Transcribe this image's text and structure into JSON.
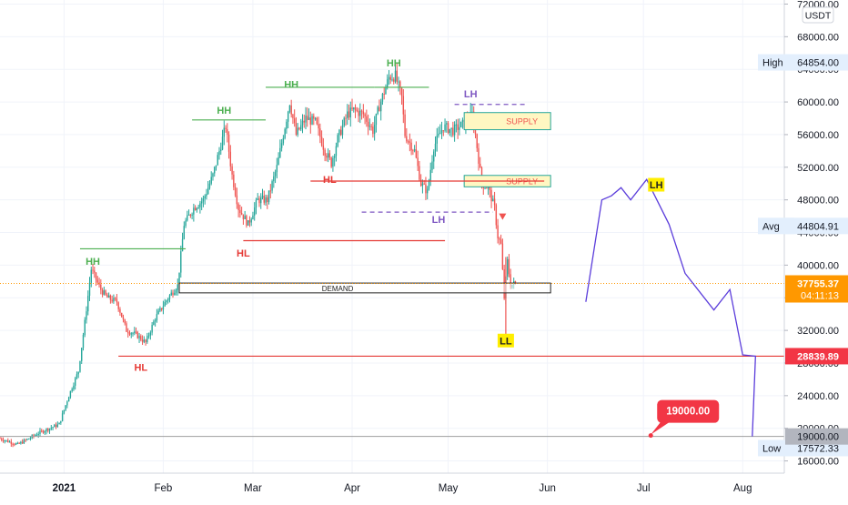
{
  "chart_data": {
    "type": "candlestick",
    "symbol_unit": "USDT",
    "currency_badge": "USDT",
    "y_axis": {
      "ticks": [
        16000,
        20000,
        24000,
        28000,
        32000,
        36000,
        40000,
        44000,
        48000,
        52000,
        56000,
        60000,
        64000,
        68000,
        72000
      ],
      "tick_labels": [
        "16000.00",
        "20000.00",
        "24000.00",
        "28000.00",
        "32000.00",
        "36000.00",
        "40000.00",
        "44000.00",
        "48000.00",
        "52000.00",
        "56000.00",
        "60000.00",
        "64000.00",
        "68000.00",
        "72000.00"
      ],
      "ylim": [
        14500,
        72500
      ]
    },
    "x_axis": {
      "labels": [
        {
          "label": "2021",
          "date": "2021-01-01",
          "bold": true
        },
        {
          "label": "Feb",
          "date": "2021-02-01"
        },
        {
          "label": "Mar",
          "date": "2021-03-01"
        },
        {
          "label": "Apr",
          "date": "2021-04-01"
        },
        {
          "label": "May",
          "date": "2021-05-01"
        },
        {
          "label": "Jun",
          "date": "2021-06-01"
        },
        {
          "label": "Jul",
          "date": "2021-07-01"
        },
        {
          "label": "Aug",
          "date": "2021-08-01"
        }
      ],
      "xlim": [
        "2020-12-12",
        "2021-08-14"
      ]
    },
    "price_markers": {
      "high": {
        "label": "High",
        "value_label": "64854.00",
        "value": 64854
      },
      "avg": {
        "label": "Avg",
        "value_label": "44804.91",
        "value": 44804.91
      },
      "low": {
        "label": "Low",
        "value_label": "17572.33",
        "value": 17572.33
      },
      "current": {
        "value_label": "37755.37",
        "value": 37755.37,
        "countdown": "04:11:13"
      },
      "level_28839": {
        "value_label": "28839.89",
        "value": 28839.89
      },
      "level_19000": {
        "value_label": "19000.00",
        "value": 19000
      }
    },
    "price_path": [
      [
        "2020-12-12",
        18800
      ],
      [
        "2020-12-18",
        18000
      ],
      [
        "2020-12-25",
        19500
      ],
      [
        "2020-12-31",
        20500
      ],
      [
        "2021-01-03",
        24000
      ],
      [
        "2021-01-06",
        27000
      ],
      [
        "2021-01-08",
        33000
      ],
      [
        "2021-01-10",
        39500
      ],
      [
        "2021-01-13",
        37000
      ],
      [
        "2021-01-15",
        36000
      ],
      [
        "2021-01-18",
        35500
      ],
      [
        "2021-01-21",
        32000
      ],
      [
        "2021-01-24",
        31500
      ],
      [
        "2021-01-27",
        30500
      ],
      [
        "2021-01-30",
        33500
      ],
      [
        "2021-02-03",
        36000
      ],
      [
        "2021-02-06",
        37500
      ],
      [
        "2021-02-08",
        45000
      ],
      [
        "2021-02-11",
        47000
      ],
      [
        "2021-02-14",
        48000
      ],
      [
        "2021-02-17",
        51000
      ],
      [
        "2021-02-19",
        54000
      ],
      [
        "2021-02-21",
        57000
      ],
      [
        "2021-02-23",
        51000
      ],
      [
        "2021-02-25",
        47000
      ],
      [
        "2021-02-28",
        45000
      ],
      [
        "2021-03-03",
        48000
      ],
      [
        "2021-03-06",
        48000
      ],
      [
        "2021-03-09",
        52000
      ],
      [
        "2021-03-11",
        56000
      ],
      [
        "2021-03-13",
        60000
      ],
      [
        "2021-03-15",
        56000
      ],
      [
        "2021-03-18",
        58000
      ],
      [
        "2021-03-21",
        57500
      ],
      [
        "2021-03-24",
        54000
      ],
      [
        "2021-03-26",
        52500
      ],
      [
        "2021-03-28",
        55500
      ],
      [
        "2021-03-31",
        58500
      ],
      [
        "2021-04-02",
        59000
      ],
      [
        "2021-04-05",
        58500
      ],
      [
        "2021-04-08",
        56500
      ],
      [
        "2021-04-10",
        59500
      ],
      [
        "2021-04-13",
        63000
      ],
      [
        "2021-04-15",
        63200
      ],
      [
        "2021-04-17",
        60500
      ],
      [
        "2021-04-18",
        56000
      ],
      [
        "2021-04-21",
        54000
      ],
      [
        "2021-04-23",
        50000
      ],
      [
        "2021-04-25",
        49000
      ],
      [
        "2021-04-27",
        54500
      ],
      [
        "2021-04-30",
        57000
      ],
      [
        "2021-05-03",
        56500
      ],
      [
        "2021-05-05",
        57000
      ],
      [
        "2021-05-07",
        57500
      ],
      [
        "2021-05-09",
        58500
      ],
      [
        "2021-05-10",
        56000
      ],
      [
        "2021-05-12",
        50000
      ],
      [
        "2021-05-14",
        49500
      ],
      [
        "2021-05-16",
        47000
      ],
      [
        "2021-05-17",
        43500
      ],
      [
        "2021-05-18",
        42500
      ],
      [
        "2021-05-19",
        36000
      ],
      [
        "2021-05-20",
        40500
      ],
      [
        "2021-05-21",
        37500
      ],
      [
        "2021-05-22",
        37755
      ]
    ],
    "projection_path": [
      [
        "2021-06-13",
        35500
      ],
      [
        "2021-06-18",
        48000
      ],
      [
        "2021-06-21",
        48500
      ],
      [
        "2021-06-24",
        49500
      ],
      [
        "2021-06-27",
        48000
      ],
      [
        "2021-07-02",
        50500
      ],
      [
        "2021-07-09",
        45000
      ],
      [
        "2021-07-14",
        39000
      ],
      [
        "2021-07-23",
        34500
      ],
      [
        "2021-07-28",
        37000
      ],
      [
        "2021-08-01",
        29000
      ],
      [
        "2021-08-05",
        28839.89
      ],
      [
        "2021-08-04",
        19000
      ]
    ],
    "structure_labels": [
      {
        "text": "HH",
        "date": "2021-01-10",
        "value": 40500,
        "style": "green"
      },
      {
        "text": "HH",
        "date": "2021-02-20",
        "value": 59000,
        "style": "green"
      },
      {
        "text": "HH",
        "date": "2021-03-13",
        "value": 62200,
        "style": "green"
      },
      {
        "text": "HH",
        "date": "2021-04-14",
        "value": 64800,
        "style": "green"
      },
      {
        "text": "HL",
        "date": "2021-01-25",
        "value": 27500,
        "style": "red"
      },
      {
        "text": "HL",
        "date": "2021-02-26",
        "value": 41500,
        "style": "red"
      },
      {
        "text": "HL",
        "date": "2021-03-25",
        "value": 50500,
        "style": "red"
      },
      {
        "text": "LH",
        "date": "2021-05-08",
        "value": 61000,
        "style": "purple"
      },
      {
        "text": "LH",
        "date": "2021-04-28",
        "value": 45600,
        "style": "purple"
      },
      {
        "text": "LH",
        "date": "2021-07-05",
        "value": 49800,
        "style": "badge"
      },
      {
        "text": "LL",
        "date": "2021-05-19",
        "value": 30700,
        "style": "badge"
      }
    ],
    "zones": [
      {
        "label": "SUPPLY",
        "from": "2021-05-06",
        "to": "2021-06-02",
        "low": 56600,
        "high": 58700
      },
      {
        "label": "SUPPLY",
        "from": "2021-05-06",
        "to": "2021-06-02",
        "low": 49600,
        "high": 51000
      },
      {
        "label": "DEMAND",
        "from": "2021-02-06",
        "to": "2021-06-02",
        "low": 36600,
        "high": 37800
      }
    ],
    "levels": [
      {
        "kind": "green",
        "from": "2021-01-06",
        "to": "2021-02-08",
        "value": 42000
      },
      {
        "kind": "green",
        "from": "2021-02-10",
        "to": "2021-03-05",
        "value": 57800
      },
      {
        "kind": "green",
        "from": "2021-03-05",
        "to": "2021-04-08",
        "value": 61800
      },
      {
        "kind": "green",
        "from": "2021-04-08",
        "to": "2021-04-25",
        "value": 61800
      },
      {
        "kind": "red",
        "from": "2021-01-18",
        "to": "2021-08-14",
        "value": 28839.89
      },
      {
        "kind": "red",
        "from": "2021-02-26",
        "to": "2021-04-30",
        "value": 43000
      },
      {
        "kind": "red",
        "from": "2021-03-19",
        "to": "2021-05-31",
        "value": 50300
      },
      {
        "kind": "purple-dash",
        "from": "2021-05-03",
        "to": "2021-05-26",
        "value": 59700
      },
      {
        "kind": "purple-dash",
        "from": "2021-04-04",
        "to": "2021-05-15",
        "value": 46500
      }
    ],
    "callout": {
      "label": "19000.00",
      "date": "2021-07-03",
      "value": 19000
    },
    "down_arrow": {
      "date": "2021-05-18",
      "value": 46000
    },
    "grid": true,
    "colors": {
      "up": "#26a69a",
      "down": "#ef5350",
      "green_line": "#4caf50",
      "red_line": "#e53935",
      "purple": "#7e57c2",
      "projection": "#5b3ddb",
      "supply_fill": "#fff7c2",
      "supply_border": "#26a69a",
      "badge_yellow": "#ffee00",
      "current": "#ff9800",
      "marker_bg": "#e3effd",
      "level_red": "#f23645",
      "level_gray": "#9e9e9e"
    }
  }
}
